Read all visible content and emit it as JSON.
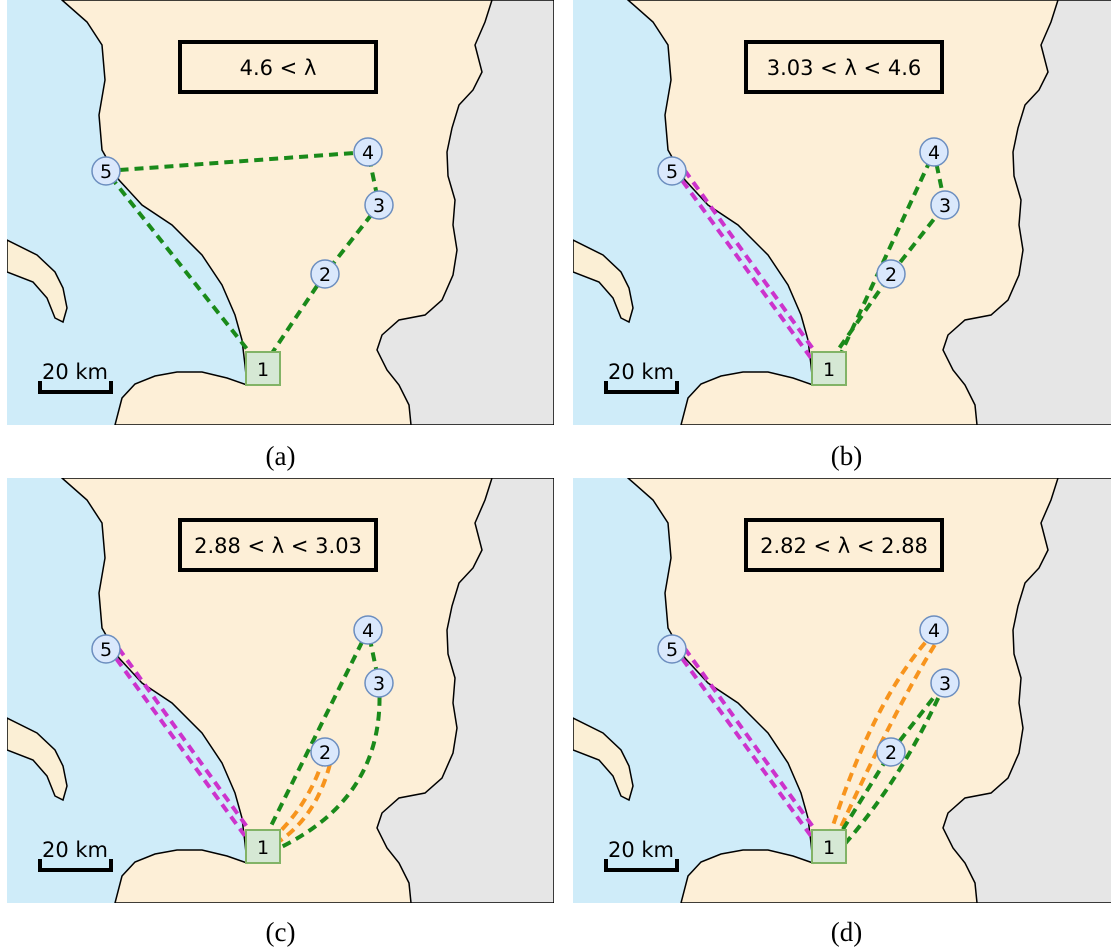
{
  "colors": {
    "land": "#fdefd7",
    "sea": "#cfecf9",
    "neighbor": "#e6e6e6",
    "depot_fill": "#d5e8d4",
    "depot_stroke": "#82b366",
    "node_fill": "#dae8fc",
    "node_stroke": "#6c8ebf",
    "route_green": "#1a8a1a",
    "route_magenta": "#cc33cc",
    "route_orange": "#f7941d"
  },
  "scale_bar": "20 km",
  "depot_label": "1",
  "node_labels": [
    "2",
    "3",
    "4",
    "5"
  ],
  "panels": [
    {
      "id": "a",
      "caption": "(a)",
      "lambda": "4.6 < λ",
      "routes": [
        {
          "color": "green",
          "stops": [
            "1",
            "2",
            "3",
            "4",
            "5",
            "1"
          ]
        }
      ]
    },
    {
      "id": "b",
      "caption": "(b)",
      "lambda": "3.03 < λ < 4.6",
      "routes": [
        {
          "color": "magenta",
          "stops": [
            "1",
            "5",
            "1"
          ]
        },
        {
          "color": "green",
          "stops": [
            "1",
            "2",
            "3",
            "4",
            "1"
          ]
        }
      ]
    },
    {
      "id": "c",
      "caption": "(c)",
      "lambda": "2.88 < λ < 3.03",
      "routes": [
        {
          "color": "magenta",
          "stops": [
            "1",
            "5",
            "1"
          ]
        },
        {
          "color": "orange",
          "stops": [
            "1",
            "2",
            "1"
          ]
        },
        {
          "color": "green",
          "stops": [
            "1",
            "3",
            "4",
            "1"
          ]
        }
      ]
    },
    {
      "id": "d",
      "caption": "(d)",
      "lambda": "2.82 < λ < 2.88",
      "routes": [
        {
          "color": "magenta",
          "stops": [
            "1",
            "5",
            "1"
          ]
        },
        {
          "color": "orange",
          "stops": [
            "1",
            "4",
            "1"
          ]
        },
        {
          "color": "green",
          "stops": [
            "1",
            "2",
            "3",
            "1"
          ]
        }
      ]
    }
  ]
}
